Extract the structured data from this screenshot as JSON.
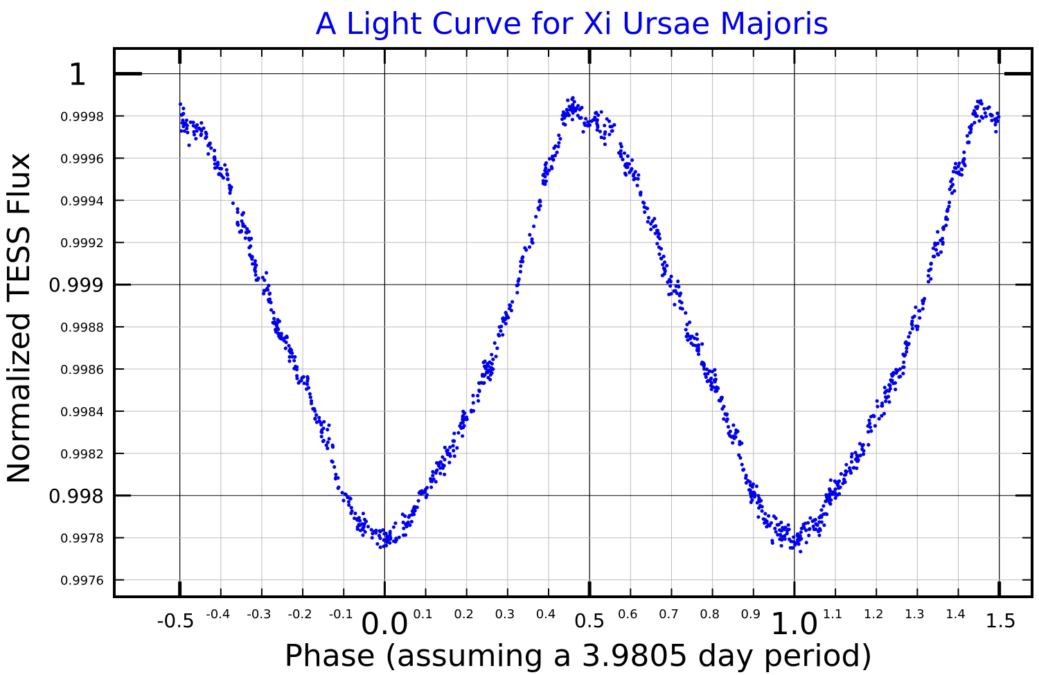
{
  "chart_data": {
    "type": "scatter",
    "title": "A Light Curve for Xi Ursae Majoris",
    "xlabel": "Phase (assuming a 3.9805 day period)",
    "ylabel": "Normalized TESS Flux",
    "xlim": [
      -0.66,
      1.58
    ],
    "ylim": [
      0.99752,
      1.00012
    ],
    "grid": true,
    "legend": "none",
    "marker_color": "#0000ee",
    "x_ticks": [
      {
        "v": -0.5,
        "label": "-0.5",
        "size": "mid"
      },
      {
        "v": -0.4,
        "label": "-0.4",
        "size": "minor"
      },
      {
        "v": -0.3,
        "label": "-0.3",
        "size": "minor"
      },
      {
        "v": -0.2,
        "label": "-0.2",
        "size": "minor"
      },
      {
        "v": -0.1,
        "label": "-0.1",
        "size": "minor"
      },
      {
        "v": 0.0,
        "label": "0.0",
        "size": "major"
      },
      {
        "v": 0.1,
        "label": "0.1",
        "size": "minor"
      },
      {
        "v": 0.2,
        "label": "0.2",
        "size": "minor"
      },
      {
        "v": 0.3,
        "label": "0.3",
        "size": "minor"
      },
      {
        "v": 0.4,
        "label": "0.4",
        "size": "minor"
      },
      {
        "v": 0.5,
        "label": "0.5",
        "size": "mid"
      },
      {
        "v": 0.6,
        "label": "0.6",
        "size": "minor"
      },
      {
        "v": 0.7,
        "label": "0.7",
        "size": "minor"
      },
      {
        "v": 0.8,
        "label": "0.8",
        "size": "minor"
      },
      {
        "v": 0.9,
        "label": "0.9",
        "size": "minor"
      },
      {
        "v": 1.0,
        "label": "1.0",
        "size": "major"
      },
      {
        "v": 1.1,
        "label": "1.1",
        "size": "minor"
      },
      {
        "v": 1.2,
        "label": "1.2",
        "size": "minor"
      },
      {
        "v": 1.3,
        "label": "1.3",
        "size": "minor"
      },
      {
        "v": 1.4,
        "label": "1.4",
        "size": "minor"
      },
      {
        "v": 1.5,
        "label": "1.5",
        "size": "mid"
      }
    ],
    "y_ticks": [
      {
        "v": 1.0,
        "label": "1",
        "size": "major"
      },
      {
        "v": 0.9998,
        "label": "0.9998",
        "size": "minor"
      },
      {
        "v": 0.9996,
        "label": "0.9996",
        "size": "minor"
      },
      {
        "v": 0.9994,
        "label": "0.9994",
        "size": "minor"
      },
      {
        "v": 0.9992,
        "label": "0.9992",
        "size": "minor"
      },
      {
        "v": 0.999,
        "label": "0.999",
        "size": "mid"
      },
      {
        "v": 0.9988,
        "label": "0.9988",
        "size": "minor"
      },
      {
        "v": 0.9986,
        "label": "0.9986",
        "size": "minor"
      },
      {
        "v": 0.9984,
        "label": "0.9984",
        "size": "minor"
      },
      {
        "v": 0.9982,
        "label": "0.9982",
        "size": "minor"
      },
      {
        "v": 0.998,
        "label": "0.998",
        "size": "mid"
      },
      {
        "v": 0.9978,
        "label": "0.9978",
        "size": "minor"
      },
      {
        "v": 0.9976,
        "label": "0.9976",
        "size": "minor"
      }
    ],
    "curve": {
      "phase": [
        0.0,
        0.05,
        0.1,
        0.15,
        0.2,
        0.25,
        0.3,
        0.35,
        0.4,
        0.45,
        0.5,
        0.55,
        0.6,
        0.65,
        0.7,
        0.75,
        0.8,
        0.85,
        0.9,
        0.95,
        1.0
      ],
      "flux": [
        0.99779,
        0.99785,
        0.99803,
        0.99817,
        0.99837,
        0.99858,
        0.99885,
        0.99917,
        0.99955,
        0.99984,
        0.99978,
        0.99973,
        0.99955,
        0.9993,
        0.999,
        0.99875,
        0.99855,
        0.9983,
        0.998,
        0.99784,
        0.99779
      ]
    },
    "series": [
      {
        "phase_range": [
          -0.5,
          1.5
        ],
        "points_per_unit_phase": 600
      }
    ]
  }
}
